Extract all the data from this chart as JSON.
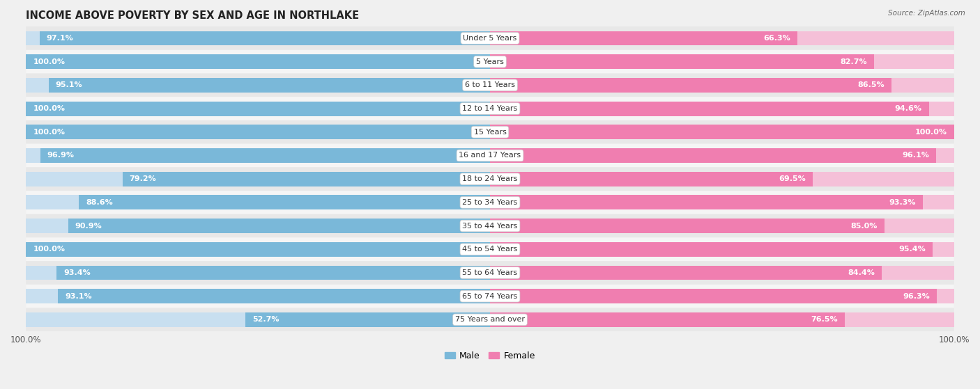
{
  "title": "INCOME ABOVE POVERTY BY SEX AND AGE IN NORTHLAKE",
  "source": "Source: ZipAtlas.com",
  "categories": [
    "Under 5 Years",
    "5 Years",
    "6 to 11 Years",
    "12 to 14 Years",
    "15 Years",
    "16 and 17 Years",
    "18 to 24 Years",
    "25 to 34 Years",
    "35 to 44 Years",
    "45 to 54 Years",
    "55 to 64 Years",
    "65 to 74 Years",
    "75 Years and over"
  ],
  "male_values": [
    97.1,
    100.0,
    95.1,
    100.0,
    100.0,
    96.9,
    79.2,
    88.6,
    90.9,
    100.0,
    93.4,
    93.1,
    52.7
  ],
  "female_values": [
    66.3,
    82.7,
    86.5,
    94.6,
    100.0,
    96.1,
    69.5,
    93.3,
    85.0,
    95.4,
    84.4,
    96.3,
    76.5
  ],
  "male_color": "#7ab8d9",
  "female_color": "#f07eb0",
  "male_light": "#c8dff0",
  "female_light": "#f5c0d8",
  "row_colors": [
    "#e8e8e8",
    "#f5f5f5"
  ],
  "bg_color": "#f0f0f0",
  "title_fontsize": 10.5,
  "label_fontsize": 8.0,
  "bar_height": 0.62,
  "legend_male": "Male",
  "legend_female": "Female",
  "x_tick_label": "100.0%"
}
